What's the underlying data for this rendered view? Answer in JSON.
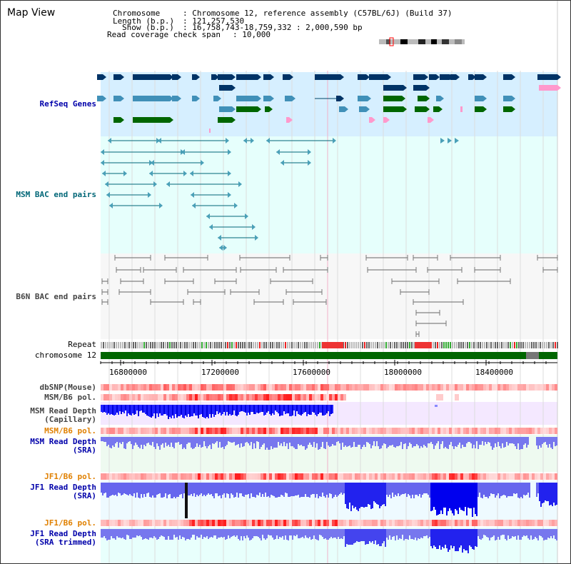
{
  "header": {
    "title": "Map View",
    "chromosome_key": "Chromosome",
    "chromosome_val": ": Chromosome 12, reference assembly (C57BL/6J) (Build 37)",
    "length_key": "Length (b.p.)",
    "length_val": ": 121,257,530",
    "show_key": "Show (b.p.)",
    "show_val": ": 16,758,743-18,759,332 : 2,000,590 bp",
    "coverage_key": "Read coverage check span",
    "coverage_val": ": 10,000"
  },
  "tracks": {
    "refseq": "RefSeq Genes",
    "msm_bac": "MSM BAC end pairs",
    "b6n_bac": "B6N BAC end pairs",
    "repeat": "Repeat",
    "chromosome": "chromosome 12",
    "dbsnp": "dbSNP(Mouse)",
    "msm_b6_pol_1": "MSM/B6 pol.",
    "msm_rd_cap_1": "MSM Read Depth",
    "msm_rd_cap_2": "(Capillary)",
    "msm_b6_pol_2": "MSM/B6 pol.",
    "msm_rd_sra_1": "MSM Read Depth",
    "msm_rd_sra_2": "(SRA)",
    "jf1_b6_pol_1": "JF1/B6 pol.",
    "jf1_rd_sra_1": "JF1 Read Depth",
    "jf1_rd_sra_2": "(SRA)",
    "jf1_b6_pol_2": "JF1/B6 pol.",
    "jf1_rd_trim_1": "JF1 Read Depth",
    "jf1_rd_trim_2": "(SRA trimmed)"
  },
  "axis": {
    "ticks": [
      "16800000",
      "17200000",
      "17600000",
      "18000000",
      "18400000"
    ]
  },
  "colors": {
    "refseq_bg": "#d6efff",
    "bac_bg": "#e6fffc",
    "b6n_bg": "#f7f7f7",
    "gene_dark": "#003366",
    "gene_mid": "#4090b8",
    "gene_green": "#006600",
    "gene_pink": "#ff99cc",
    "chrom_green": "#006600",
    "depth_blue": "#2020ee",
    "depth_light": "#7777ee",
    "pol_red": "#ee2222"
  }
}
